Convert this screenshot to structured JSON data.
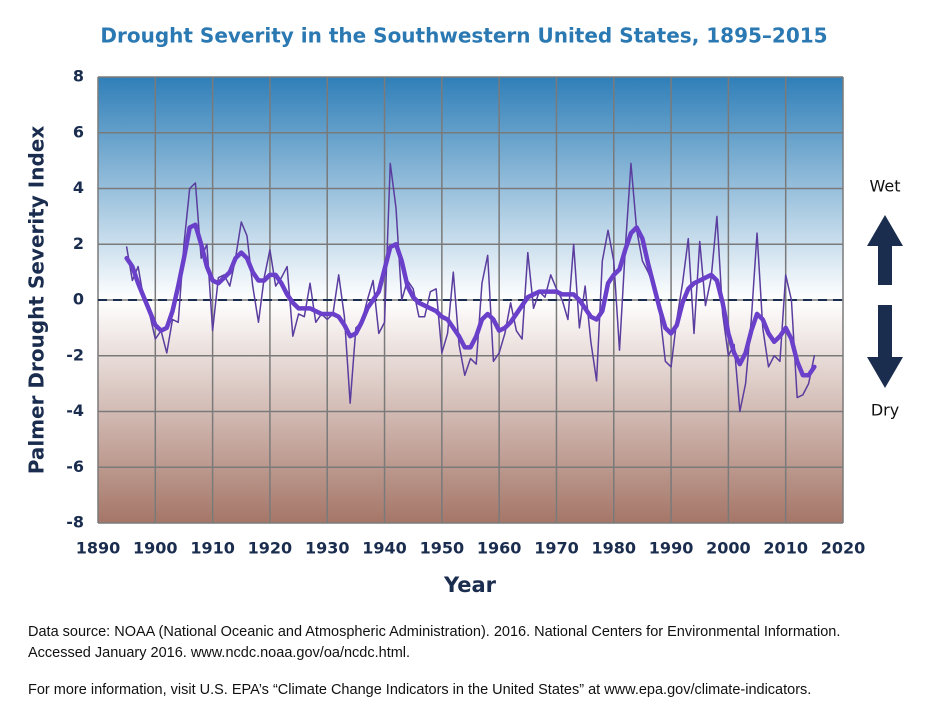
{
  "chart_data": {
    "type": "line",
    "title": "Drought Severity in the Southwestern United States, 1895–2015",
    "x_label": "Year",
    "y_label": "Palmer Drought Severity Index",
    "xlim": [
      1890,
      2020
    ],
    "xticks": [
      1890,
      1900,
      1910,
      1920,
      1930,
      1940,
      1950,
      1960,
      1970,
      1980,
      1990,
      2000,
      2010,
      2020
    ],
    "ylim": [
      -8,
      8
    ],
    "yticks": [
      -8,
      -6,
      -4,
      -2,
      0,
      2,
      4,
      6,
      8
    ],
    "grid": true,
    "reference_line": 0,
    "annotations": {
      "wet": "Wet",
      "dry": "Dry"
    },
    "x": [
      1895,
      1896,
      1897,
      1898,
      1899,
      1900,
      1901,
      1902,
      1903,
      1904,
      1905,
      1906,
      1907,
      1908,
      1909,
      1910,
      1911,
      1912,
      1913,
      1914,
      1915,
      1916,
      1917,
      1918,
      1919,
      1920,
      1921,
      1922,
      1923,
      1924,
      1925,
      1926,
      1927,
      1928,
      1929,
      1930,
      1931,
      1932,
      1933,
      1934,
      1935,
      1936,
      1937,
      1938,
      1939,
      1940,
      1941,
      1942,
      1943,
      1944,
      1945,
      1946,
      1947,
      1948,
      1949,
      1950,
      1951,
      1952,
      1953,
      1954,
      1955,
      1956,
      1957,
      1958,
      1959,
      1960,
      1961,
      1962,
      1963,
      1964,
      1965,
      1966,
      1967,
      1968,
      1969,
      1970,
      1971,
      1972,
      1973,
      1974,
      1975,
      1976,
      1977,
      1978,
      1979,
      1980,
      1981,
      1982,
      1983,
      1984,
      1985,
      1986,
      1987,
      1988,
      1989,
      1990,
      1991,
      1992,
      1993,
      1994,
      1995,
      1996,
      1997,
      1998,
      1999,
      2000,
      2001,
      2002,
      2003,
      2004,
      2005,
      2006,
      2007,
      2008,
      2009,
      2010,
      2011,
      2012,
      2013,
      2014,
      2015
    ],
    "series": [
      {
        "color": "#5a3d9e",
        "width": 1.5,
        "values": [
          1.9,
          0.7,
          1.2,
          0.0,
          -0.5,
          -1.4,
          -1.1,
          -1.9,
          -0.7,
          -0.8,
          2.0,
          4.0,
          4.2,
          1.5,
          2.0,
          -1.1,
          0.8,
          0.9,
          0.5,
          1.5,
          2.8,
          2.3,
          0.5,
          -0.8,
          0.8,
          1.8,
          0.5,
          0.8,
          1.2,
          -1.3,
          -0.5,
          -0.6,
          0.6,
          -0.8,
          -0.5,
          -0.7,
          -0.5,
          0.9,
          -0.6,
          -3.7,
          -1.0,
          -0.8,
          0.0,
          0.7,
          -1.2,
          -0.8,
          4.9,
          3.3,
          0.0,
          0.7,
          0.4,
          -0.6,
          -0.6,
          0.3,
          0.4,
          -1.9,
          -1.2,
          1.0,
          -1.6,
          -2.7,
          -2.1,
          -2.3,
          0.6,
          1.6,
          -2.2,
          -1.9,
          -1.2,
          -0.1,
          -1.1,
          -1.4,
          1.7,
          -0.3,
          0.3,
          0.1,
          0.9,
          0.4,
          0.0,
          -0.7,
          2.0,
          -1.0,
          0.5,
          -1.5,
          -2.9,
          1.4,
          2.5,
          1.4,
          -1.8,
          1.8,
          4.9,
          2.5,
          1.4,
          1.0,
          0.5,
          -0.4,
          -2.2,
          -2.4,
          -0.7,
          0.6,
          2.2,
          -1.2,
          2.1,
          -0.2,
          0.8,
          3.0,
          -0.5,
          -2.0,
          -1.6,
          -4.0,
          -3.0,
          -0.7,
          2.4,
          -1.0,
          -2.4,
          -2.0,
          -2.2,
          0.9,
          0.0,
          -3.5,
          -3.4,
          -3.0,
          -2.0
        ]
      },
      {
        "color": "#6a3fc9",
        "width": 4.5,
        "values": [
          1.5,
          1.2,
          0.6,
          0.1,
          -0.4,
          -0.9,
          -1.1,
          -1.0,
          -0.4,
          0.5,
          1.5,
          2.6,
          2.7,
          2.0,
          1.2,
          0.7,
          0.6,
          0.8,
          1.0,
          1.5,
          1.7,
          1.5,
          1.0,
          0.7,
          0.7,
          0.9,
          0.9,
          0.6,
          0.2,
          -0.1,
          -0.3,
          -0.3,
          -0.3,
          -0.4,
          -0.5,
          -0.5,
          -0.5,
          -0.6,
          -0.9,
          -1.3,
          -1.2,
          -0.8,
          -0.3,
          0.0,
          0.3,
          1.1,
          1.9,
          2.0,
          1.4,
          0.5,
          0.1,
          -0.1,
          -0.2,
          -0.3,
          -0.4,
          -0.6,
          -0.7,
          -1.0,
          -1.3,
          -1.7,
          -1.7,
          -1.3,
          -0.7,
          -0.5,
          -0.7,
          -1.1,
          -1.0,
          -0.8,
          -0.5,
          -0.2,
          0.1,
          0.2,
          0.3,
          0.3,
          0.3,
          0.3,
          0.2,
          0.2,
          0.2,
          0.0,
          -0.3,
          -0.6,
          -0.7,
          -0.4,
          0.6,
          0.9,
          1.1,
          1.8,
          2.4,
          2.6,
          2.2,
          1.3,
          0.5,
          -0.3,
          -1.0,
          -1.2,
          -0.9,
          -0.1,
          0.4,
          0.6,
          0.7,
          0.8,
          0.9,
          0.7,
          -0.1,
          -1.2,
          -1.9,
          -2.3,
          -1.9,
          -1.1,
          -0.5,
          -0.7,
          -1.2,
          -1.5,
          -1.3,
          -1.0,
          -1.4,
          -2.2,
          -2.7,
          -2.7,
          -2.4
        ]
      }
    ],
    "notes": [
      "Data source: NOAA (National Oceanic and Atmospheric Administration). 2016. National Centers for Environmental Information. Accessed January 2016. www.ncdc.noaa.gov/oa/ncdc.html.",
      "For more information, visit U.S. EPA’s “Climate Change Indicators in the United States” at www.epa.gov/climate-indicators."
    ]
  }
}
